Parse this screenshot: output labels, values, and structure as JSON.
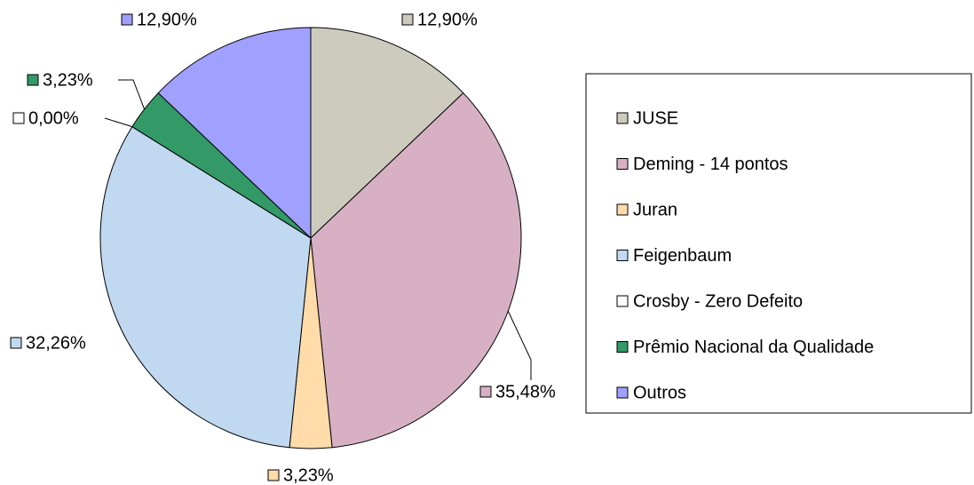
{
  "chart_data": {
    "type": "pie",
    "categories": [
      "JUSE",
      "Deming - 14 pontos",
      "Juran",
      "Feigenbaum",
      "Crosby - Zero Defeito",
      "Prêmio Nacional da Qualidade",
      "Outros"
    ],
    "values": [
      12.9,
      35.48,
      3.23,
      32.26,
      0.0,
      3.23,
      12.9
    ],
    "value_labels": [
      "12,90%",
      "35,48%",
      "3,23%",
      "32,26%",
      "0,00%",
      "3,23%",
      "12,90%"
    ],
    "colors": [
      "#cccbbd",
      "#d8b0c4",
      "#ffdcaa",
      "#c0d8f0",
      "#ffffff",
      "#339966",
      "#a0a0ff"
    ],
    "legend": "right"
  }
}
